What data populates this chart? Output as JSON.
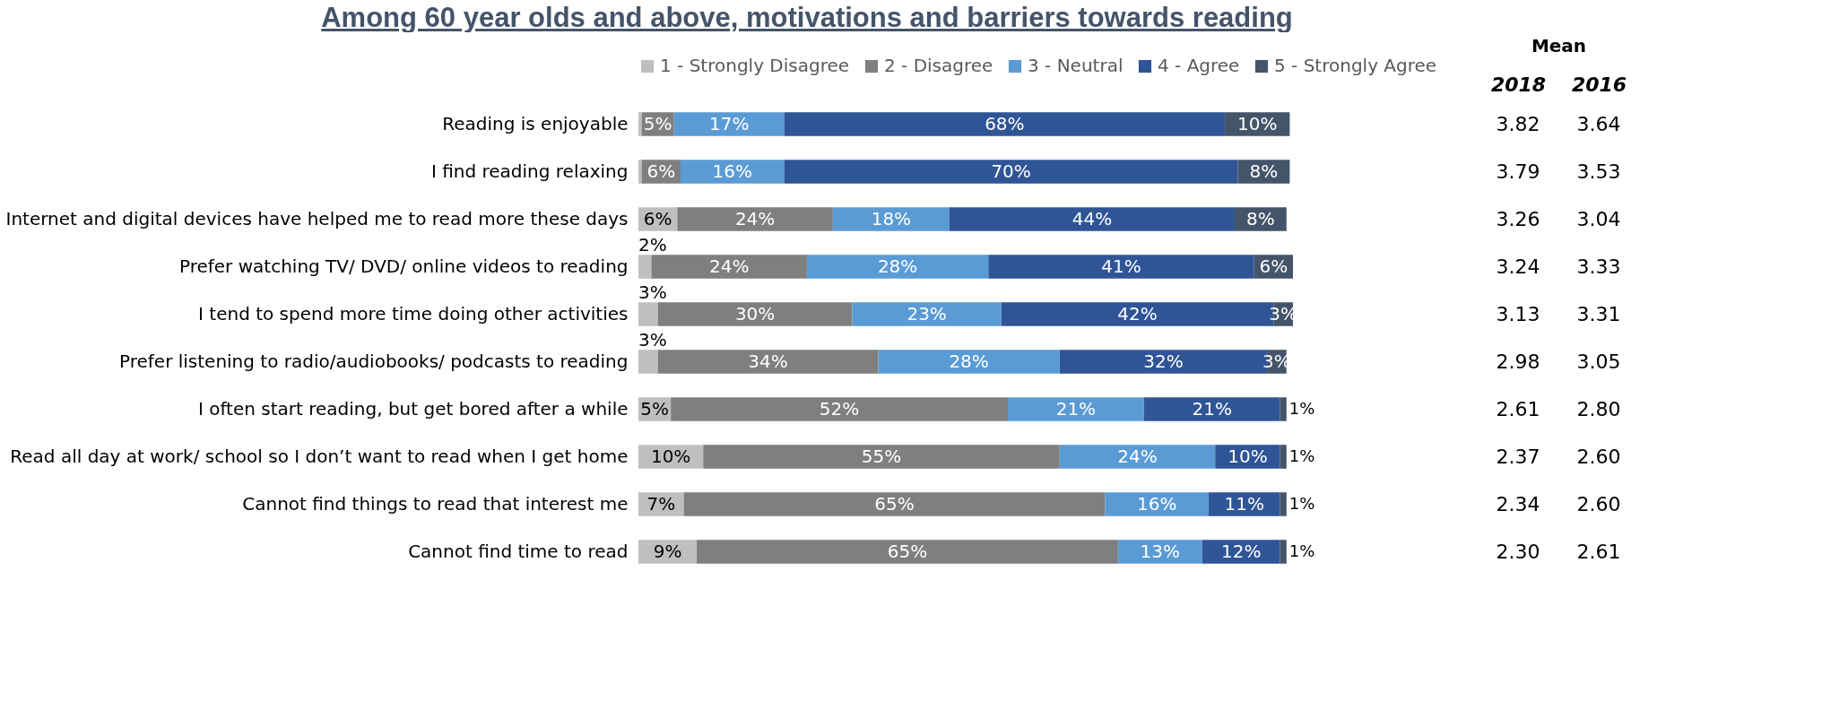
{
  "chart_data": {
    "type": "bar",
    "orientation": "horizontal",
    "stacked": true,
    "title": "Among 60 year olds and above, motivations and barriers towards reading",
    "categories": [
      "Reading is enjoyable",
      "I find reading relaxing",
      "Internet and digital devices have helped me to read more these days",
      "Prefer watching TV/ DVD/ online videos to reading",
      "I tend to spend more time doing other activities",
      "Prefer listening to radio/audiobooks/ podcasts to reading",
      "I often start reading, but get bored after a while",
      "Read all day at work/ school so I don’t want to read when I get home",
      "Cannot find things to read that interest me",
      "Cannot find time to read"
    ],
    "series": [
      {
        "name": "1 - Strongly Disagree",
        "color": "#bfbfbf",
        "values": [
          0.5,
          0.5,
          6,
          2,
          3,
          3,
          5,
          10,
          7,
          9
        ],
        "value_labels": [
          null,
          null,
          "6%",
          "2%",
          "3%",
          "3%",
          "5%",
          "10%",
          "7%",
          "9%"
        ]
      },
      {
        "name": "2 - Disagree",
        "color": "#7f7f7f",
        "values": [
          5,
          6,
          24,
          24,
          30,
          34,
          52,
          55,
          65,
          65
        ],
        "value_labels": [
          "5%",
          "6%",
          "24%",
          "24%",
          "30%",
          "34%",
          "52%",
          "55%",
          "65%",
          "65%"
        ]
      },
      {
        "name": "3 - Neutral",
        "color": "#5b9bd5",
        "values": [
          17,
          16,
          18,
          28,
          23,
          28,
          21,
          24,
          16,
          13
        ],
        "value_labels": [
          "17%",
          "16%",
          "18%",
          "28%",
          "23%",
          "28%",
          "21%",
          "24%",
          "16%",
          "13%"
        ]
      },
      {
        "name": "4 - Agree",
        "color": "#2f5597",
        "values": [
          68,
          70,
          44,
          41,
          42,
          32,
          21,
          10,
          11,
          12
        ],
        "value_labels": [
          "68%",
          "70%",
          "44%",
          "41%",
          "42%",
          "32%",
          "21%",
          "10%",
          "11%",
          "12%"
        ]
      },
      {
        "name": "5 - Strongly Agree",
        "color": "#44546a",
        "values": [
          10,
          8,
          8,
          6,
          3,
          3,
          1,
          1,
          1,
          1
        ],
        "value_labels": [
          "10%",
          "8%",
          "8%",
          "6%",
          "3%",
          "3%",
          "1%",
          "1%",
          "1%",
          "1%"
        ]
      }
    ],
    "xlim": [
      0,
      101
    ],
    "tick_labels": "y",
    "grid": false,
    "legend": "top",
    "annotations": [
      "Mean",
      "2018",
      "2016",
      "3.82",
      "3.64",
      "3.79",
      "3.53",
      "3.26",
      "3.04",
      "3.24",
      "3.33",
      "3.13",
      "3.31",
      "2.98",
      "3.05",
      "2.61",
      "2.80",
      "2.37",
      "2.60",
      "2.34",
      "2.60",
      "2.30",
      "2.61"
    ]
  }
}
